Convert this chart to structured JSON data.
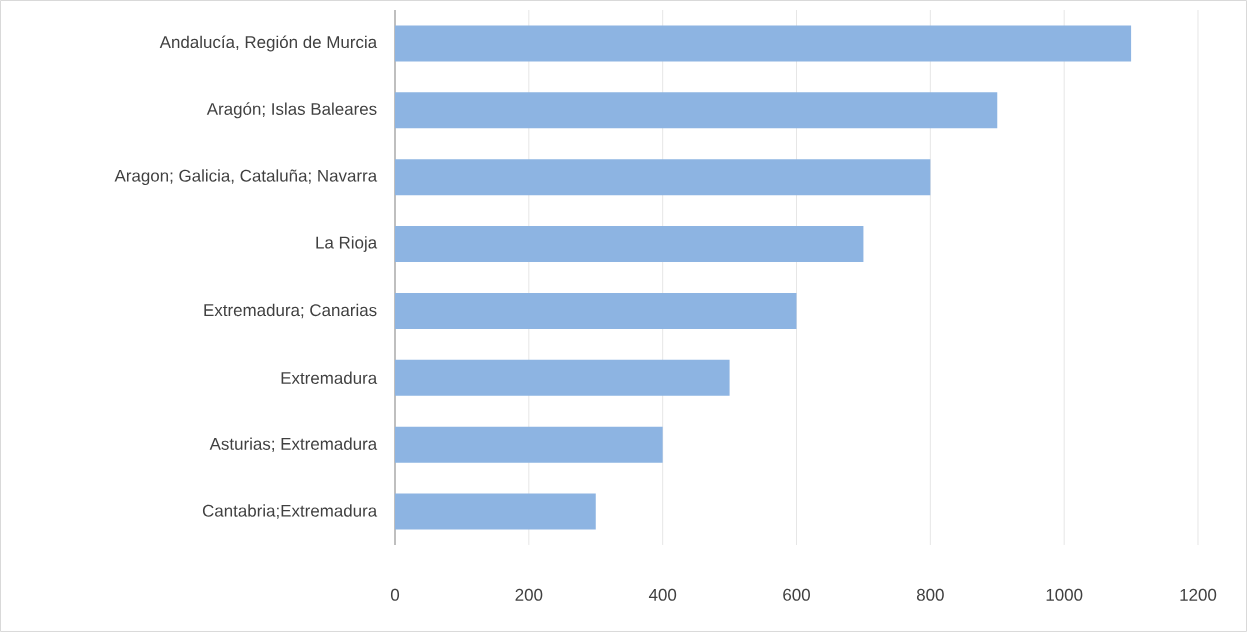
{
  "chart_data": {
    "type": "bar",
    "orientation": "horizontal",
    "categories": [
      "Andalucía, Región de Murcia",
      "Aragón; Islas Baleares",
      "Aragon; Galicia, Cataluña; Navarra",
      "La Rioja",
      "Extremadura; Canarias",
      "Extremadura",
      "Asturias; Extremadura",
      "Cantabria;Extremadura"
    ],
    "values": [
      1100,
      900,
      800,
      700,
      600,
      500,
      400,
      300
    ],
    "color": "#8db4e2",
    "xlim": [
      0,
      1200
    ],
    "xticks": [
      0,
      200,
      400,
      600,
      800,
      1000,
      1200
    ],
    "grid": "x"
  }
}
